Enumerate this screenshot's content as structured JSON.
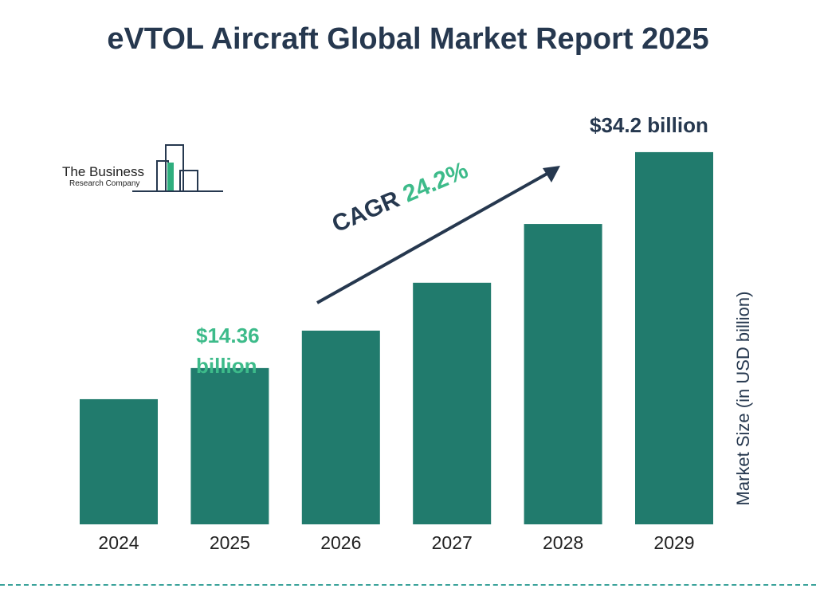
{
  "chart_data": {
    "type": "bar",
    "title": "eVTOL Aircraft Global Market Report 2025",
    "categories": [
      "2024",
      "2025",
      "2026",
      "2027",
      "2028",
      "2029"
    ],
    "values": [
      11.5,
      14.36,
      17.8,
      22.2,
      27.6,
      34.2
    ],
    "ylabel": "Market Size (in USD billion)",
    "ylim": [
      0,
      35
    ],
    "bar_color": "#217b6d",
    "grid": false,
    "annotations": {
      "first_value": "$14.36 billion",
      "last_value": "$34.2 billion",
      "cagr_label": "CAGR",
      "cagr_value": "24.2%"
    }
  },
  "logo": {
    "line1": "The Business",
    "line2": "Research Company"
  },
  "colors": {
    "title": "#26384f",
    "accent_green": "#3dbb8a",
    "bar": "#217b6d",
    "divider": "#3aa29a"
  }
}
